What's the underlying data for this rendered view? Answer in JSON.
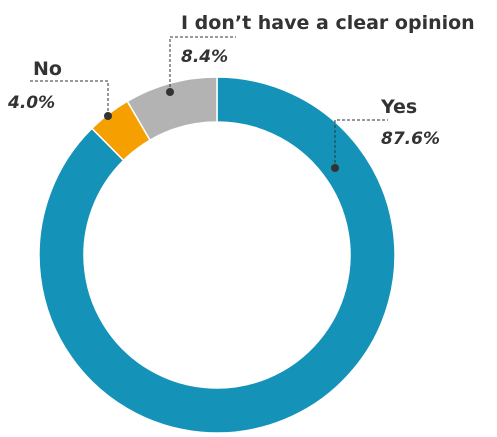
{
  "chart_data": {
    "type": "pie",
    "donut": true,
    "slices": [
      {
        "label": "Yes",
        "value": 87.6,
        "value_label": "87.6%",
        "color": "#1592B8"
      },
      {
        "label": "No",
        "value": 4.0,
        "value_label": "4.0%",
        "color": "#F5A000"
      },
      {
        "label": "I don’t have a clear opinion",
        "value": 8.4,
        "value_label": "8.4%",
        "color": "#B3B3B3"
      }
    ],
    "legend": "none",
    "title": ""
  }
}
